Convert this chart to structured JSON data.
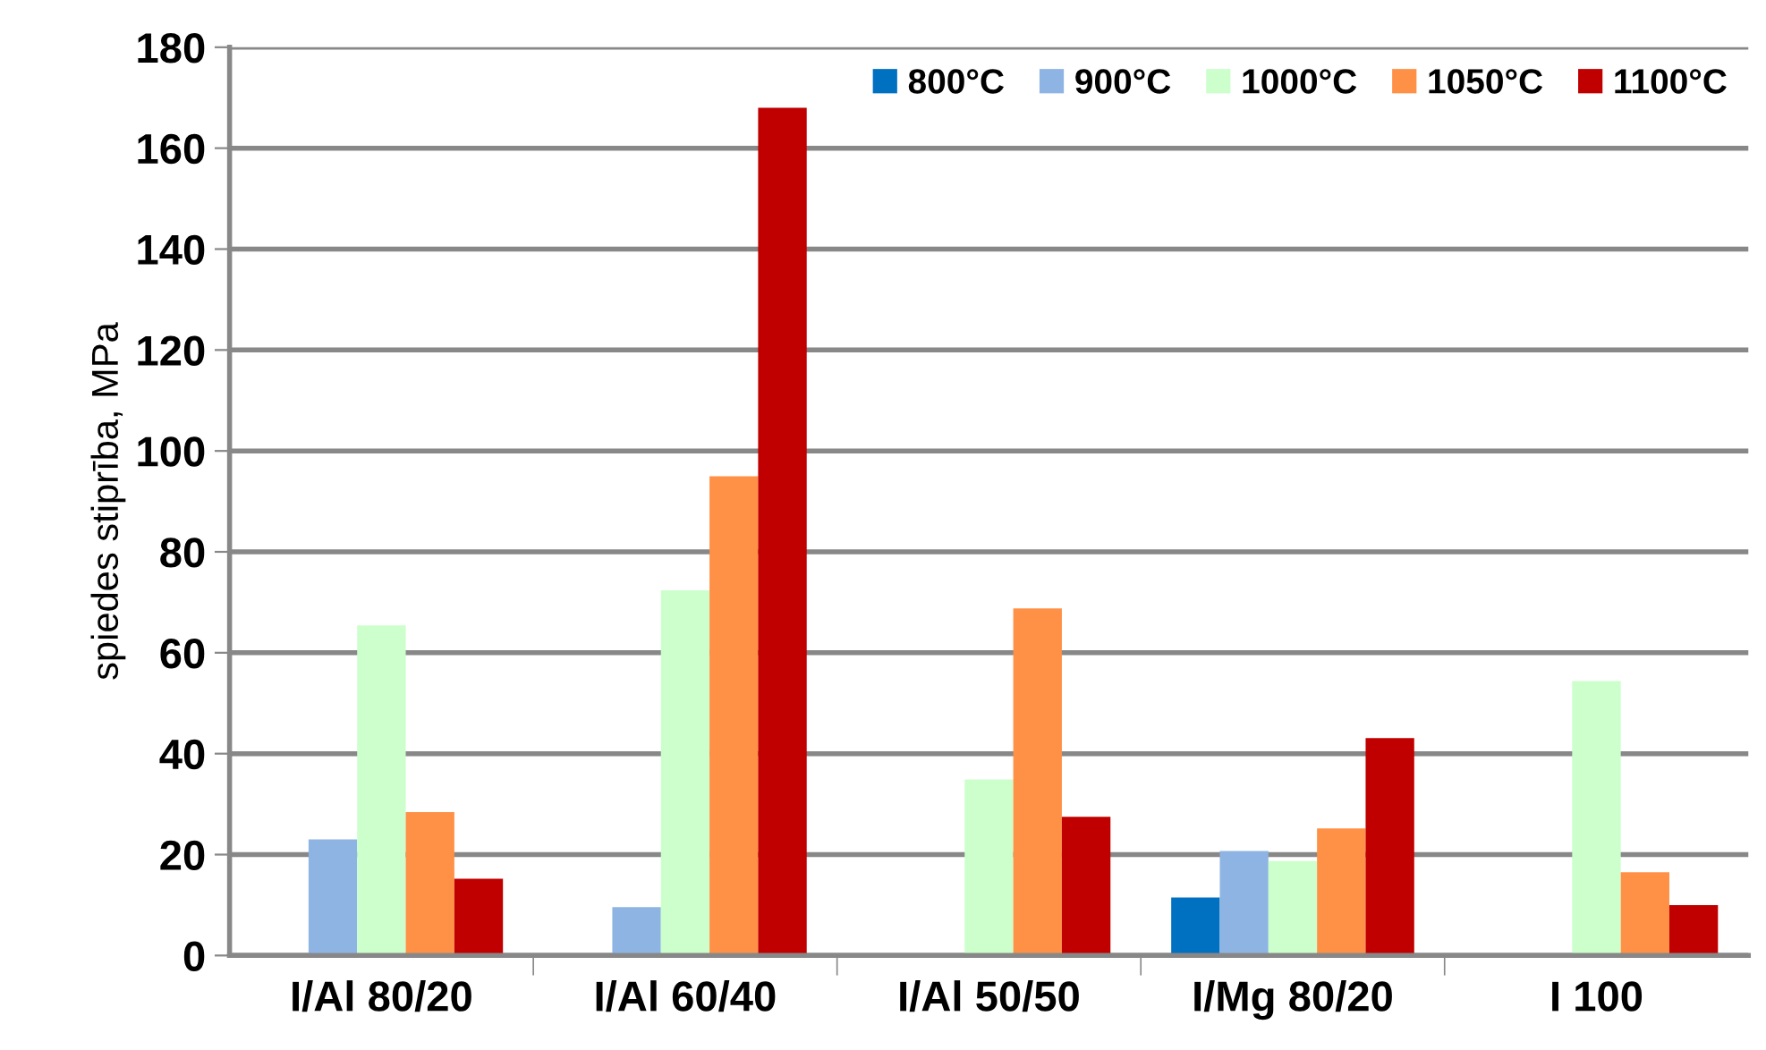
{
  "chart_data": {
    "type": "bar",
    "ylabel": "spiedes stiprība, MPa",
    "categories": [
      "I/Al 80/20",
      "I/Al 60/40",
      "I/Al 50/50",
      "I/Mg 80/20",
      "I 100"
    ],
    "series": [
      {
        "name": "800°C",
        "color": "#0070c0",
        "values": [
          null,
          null,
          null,
          11.5,
          null
        ]
      },
      {
        "name": "900°C",
        "color": "#8eb4e3",
        "values": [
          23,
          9.6,
          null,
          20.7,
          null
        ]
      },
      {
        "name": "1000°C",
        "color": "#ccffcc",
        "values": [
          65.4,
          72.4,
          34.9,
          18.7,
          54.4
        ]
      },
      {
        "name": "1050°C",
        "color": "#ff9147",
        "values": [
          28.4,
          95,
          68.8,
          25.2,
          16.5
        ]
      },
      {
        "name": "1100°C",
        "color": "#c00000",
        "values": [
          15.2,
          168,
          27.5,
          43.1,
          10
        ]
      }
    ],
    "ylim": [
      0,
      180
    ],
    "yticks": [
      0,
      20,
      40,
      60,
      80,
      100,
      120,
      140,
      160,
      180
    ],
    "grid": "y",
    "legend": "top right"
  }
}
